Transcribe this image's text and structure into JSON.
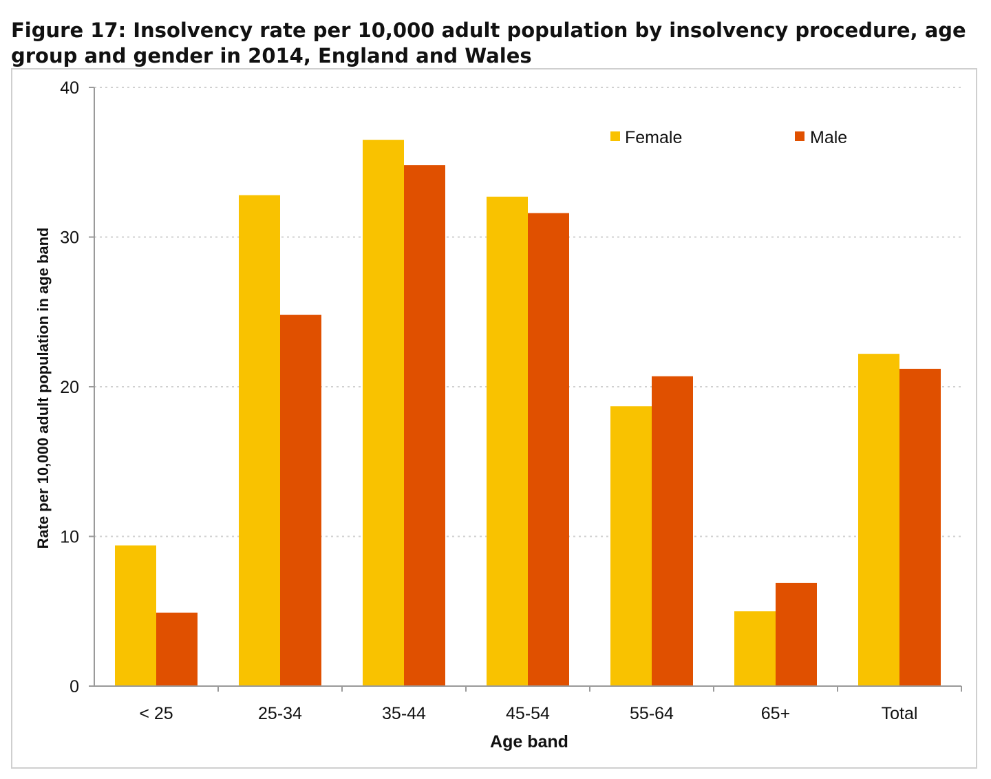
{
  "chart_data": {
    "type": "bar",
    "title": "Figure 17: Insolvency rate per 10,000 adult population by insolvency procedure, age group and gender in 2014, England and Wales",
    "xlabel": "Age band",
    "ylabel": "Rate per 10,000 adult population in age band",
    "categories": [
      "< 25",
      "25-34",
      "35-44",
      "45-54",
      "55-64",
      "65+",
      "Total"
    ],
    "series": [
      {
        "name": "Female",
        "color": "#F9C200",
        "values": [
          9.4,
          32.8,
          36.5,
          32.7,
          18.7,
          5.0,
          22.2
        ]
      },
      {
        "name": "Male",
        "color": "#E05000",
        "values": [
          4.9,
          24.8,
          34.8,
          31.6,
          20.7,
          6.9,
          21.2
        ]
      }
    ],
    "ylim": [
      0,
      40
    ],
    "yticks": [
      "0",
      "10",
      "20",
      "30",
      "40"
    ],
    "grid": true,
    "legend_position": "top-right"
  }
}
